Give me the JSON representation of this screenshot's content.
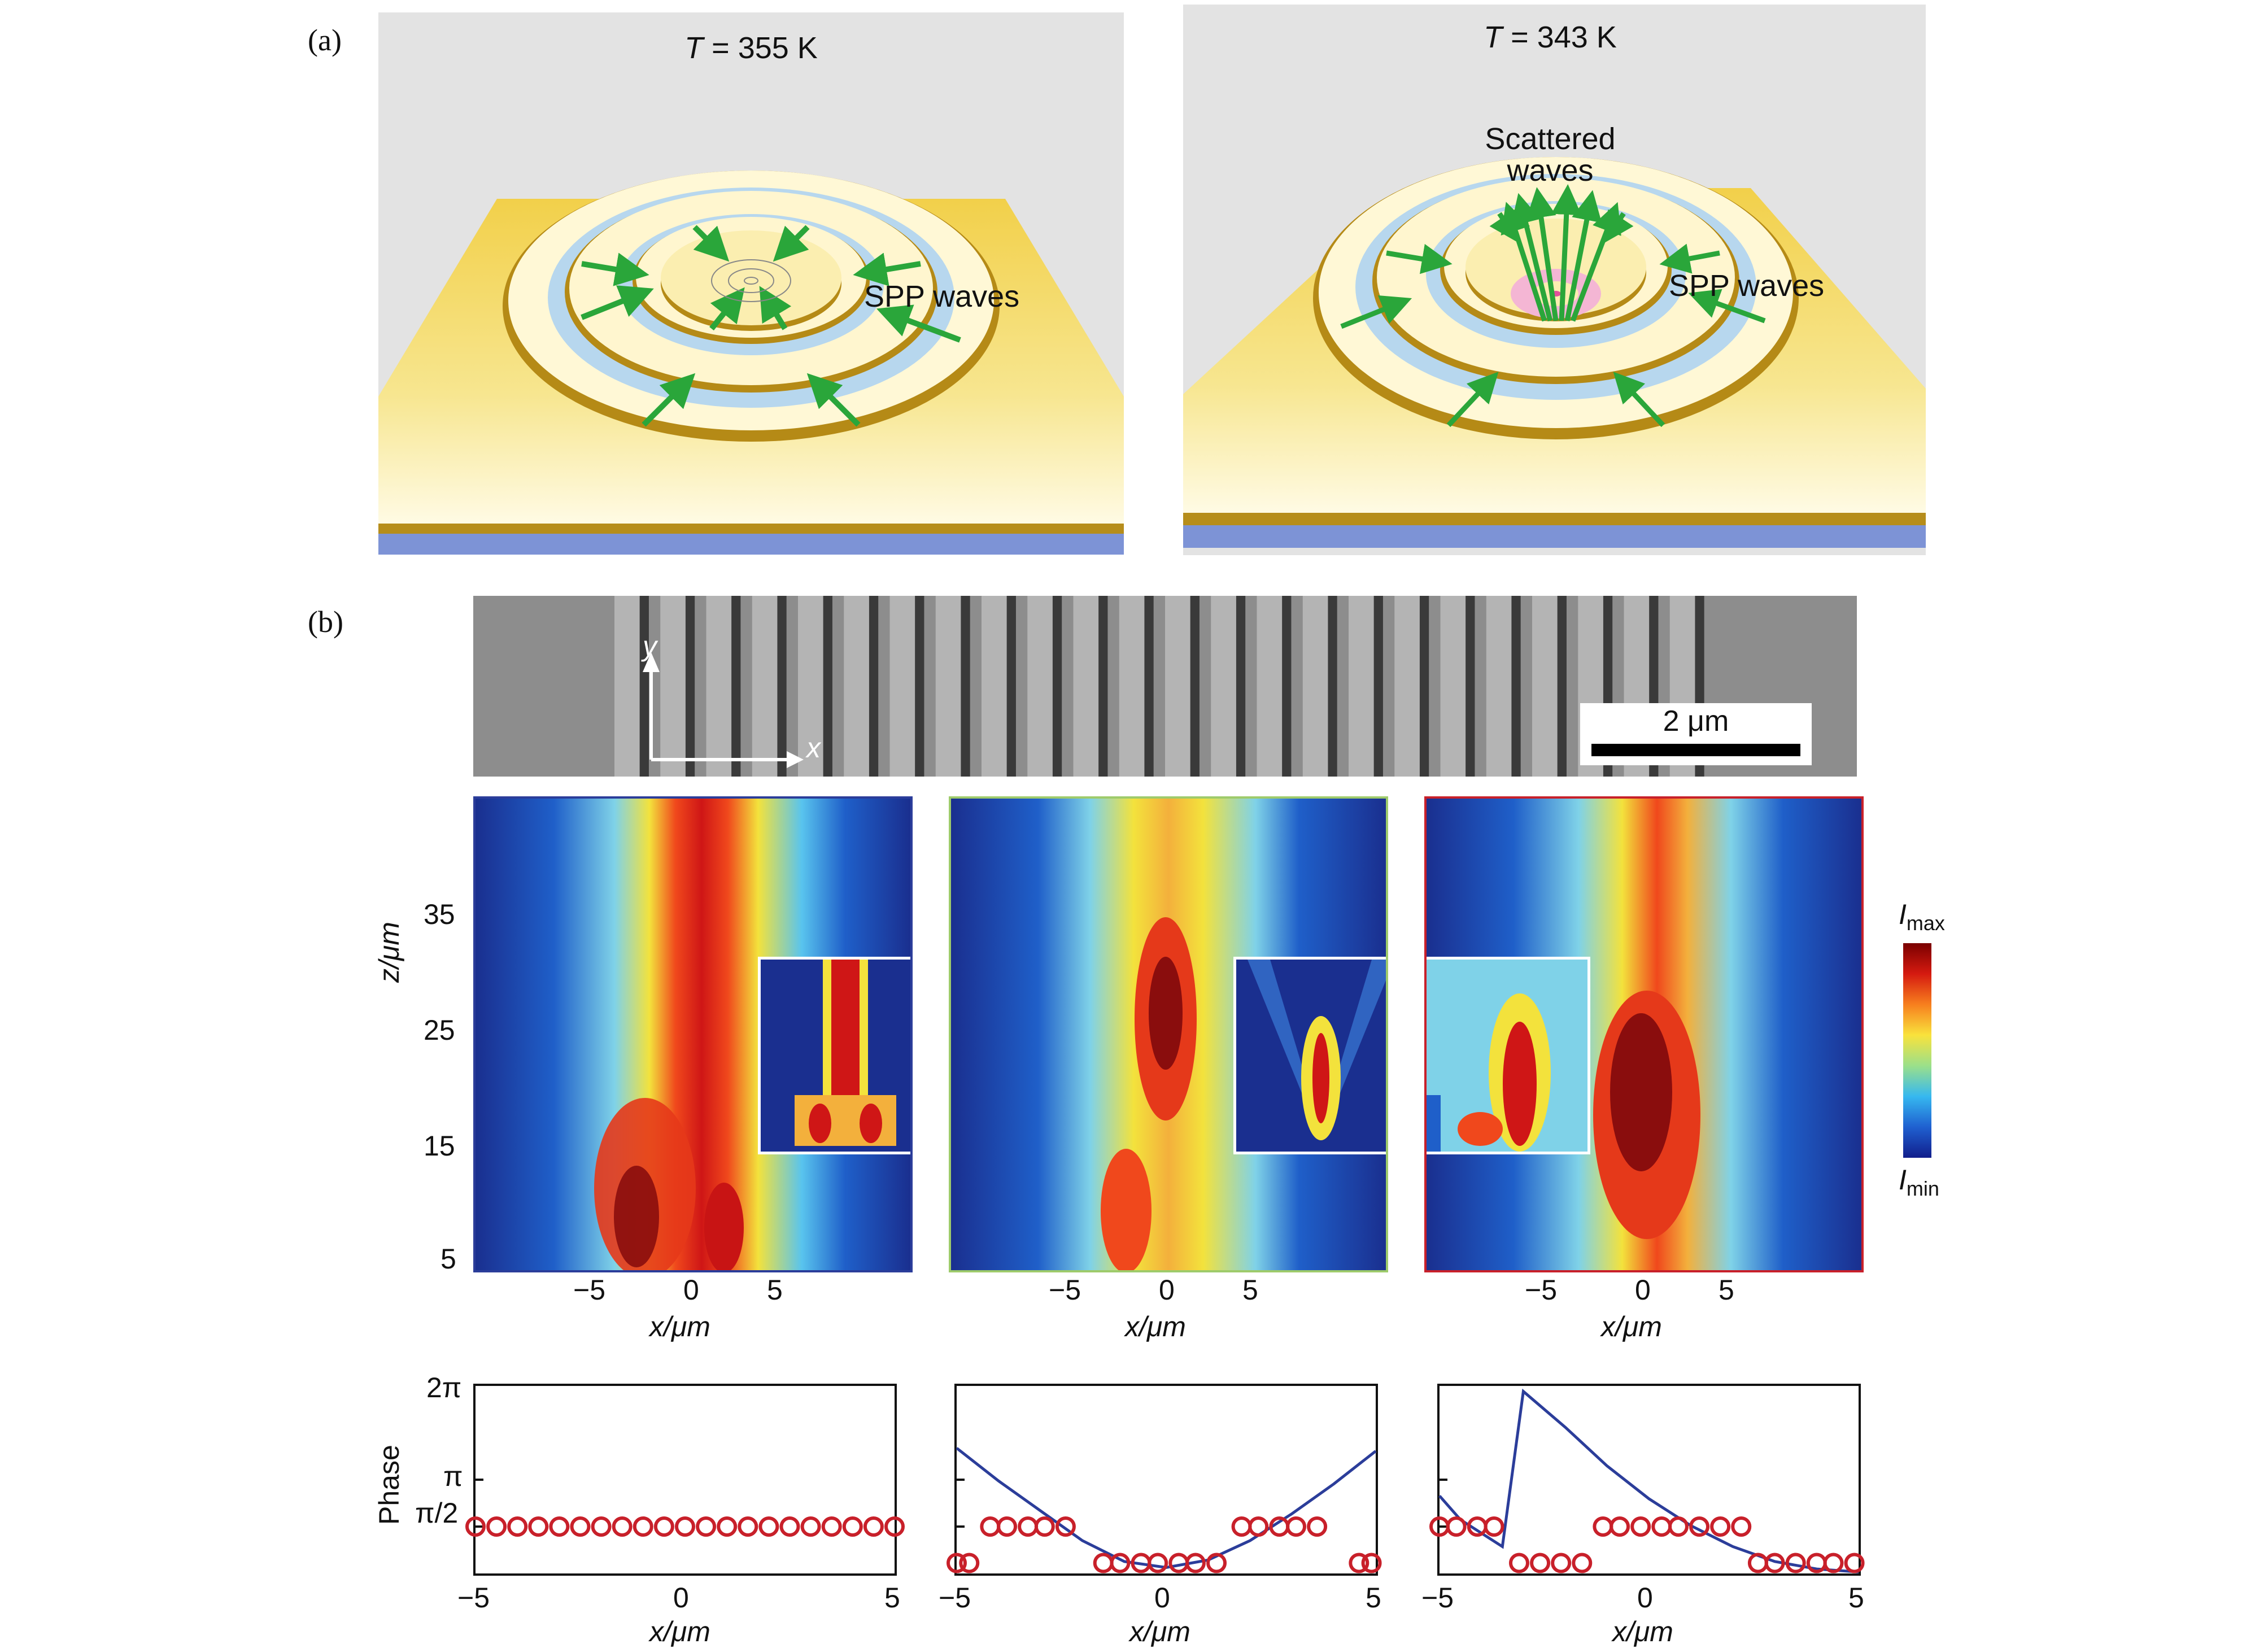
{
  "panels": {
    "a_label": "(a)",
    "b_label": "(b)"
  },
  "scene_left": {
    "temp_prefix": "T",
    "temp_rest": " = 355 K",
    "spp_label": "SPP waves"
  },
  "scene_right": {
    "temp_prefix": "T",
    "temp_rest": " = 343 K",
    "scattered_line1": "Scattered",
    "scattered_line2": "waves",
    "spp_label": "SPP waves"
  },
  "sem": {
    "y_axis": "y",
    "x_axis": "x",
    "scale_bar": "2 μm",
    "stripe_count": 24
  },
  "colors": {
    "gold": "#e8c23a",
    "blue_ring": "#b7d7ee",
    "hm_blue_frame": "#2b3d9a",
    "hm_green_frame": "#9ecb6b",
    "hm_red_frame": "#c8202a",
    "circle_red": "#c8202a",
    "curve_blue": "#2b3d9a"
  },
  "heatmaps": {
    "z_label": "z/μm",
    "z_ticks": [
      "35",
      "25",
      "15",
      "5"
    ],
    "x_ticks": [
      "−5",
      "0",
      "5"
    ],
    "x_label": "x/μm"
  },
  "colorbar": {
    "max_label": "I",
    "max_sub": "max",
    "min_label": "I",
    "min_sub": "min"
  },
  "chart_data": [
    {
      "type": "scatter",
      "title": "",
      "xlabel": "x/μm",
      "ylabel": "Phase",
      "xlim": [
        -5,
        5
      ],
      "ylim": [
        0,
        6.283
      ],
      "yticks": [
        "2π",
        "π",
        "π/2"
      ],
      "xticks": [
        "−5",
        "0",
        "5"
      ],
      "circles_x": [
        -5,
        -4.5,
        -4,
        -3.5,
        -3,
        -2.5,
        -2,
        -1.5,
        -1,
        -0.5,
        0,
        0.5,
        1,
        1.5,
        2,
        2.5,
        3,
        3.5,
        4,
        4.5,
        5
      ],
      "circles_y": [
        1.571,
        1.571,
        1.571,
        1.571,
        1.571,
        1.571,
        1.571,
        1.571,
        1.571,
        1.571,
        1.571,
        1.571,
        1.571,
        1.571,
        1.571,
        1.571,
        1.571,
        1.571,
        1.571,
        1.571,
        1.571
      ],
      "curve": []
    },
    {
      "type": "scatter",
      "title": "",
      "xlabel": "x/μm",
      "ylabel": "",
      "xlim": [
        -5,
        5
      ],
      "ylim": [
        0,
        6.283
      ],
      "xticks": [
        "−5",
        "0",
        "5"
      ],
      "circles_x": [
        -5,
        -4.7,
        -4.2,
        -3.8,
        -3.3,
        -2.9,
        -2.4,
        -1.5,
        -1.1,
        -0.6,
        -0.2,
        0.3,
        0.7,
        1.2,
        1.8,
        2.2,
        2.7,
        3.1,
        3.6,
        4.6,
        4.9
      ],
      "circles_y": [
        0.35,
        0.35,
        1.571,
        1.571,
        1.571,
        1.571,
        1.571,
        0.35,
        0.35,
        0.35,
        0.35,
        0.35,
        0.35,
        0.35,
        1.571,
        1.571,
        1.571,
        1.571,
        1.571,
        0.35,
        0.35
      ],
      "curve": [
        [
          -5,
          4.2
        ],
        [
          -4,
          3.1
        ],
        [
          -3,
          2.1
        ],
        [
          -2,
          1.1
        ],
        [
          -1,
          0.4
        ],
        [
          0,
          0.2
        ],
        [
          1,
          0.45
        ],
        [
          2,
          1.1
        ],
        [
          3,
          2.0
        ],
        [
          4,
          3.0
        ],
        [
          5,
          4.1
        ]
      ]
    },
    {
      "type": "scatter",
      "title": "",
      "xlabel": "x/μm",
      "ylabel": "",
      "xlim": [
        -5,
        5
      ],
      "ylim": [
        0,
        6.283
      ],
      "xticks": [
        "−5",
        "0",
        "5"
      ],
      "circles_x": [
        -5,
        -4.6,
        -4.1,
        -3.7,
        -3.1,
        -2.6,
        -2.1,
        -1.6,
        -1.1,
        -0.7,
        -0.2,
        0.3,
        0.7,
        1.2,
        1.7,
        2.2,
        2.6,
        3.0,
        3.5,
        4.0,
        4.4,
        4.9
      ],
      "circles_y": [
        1.571,
        1.571,
        1.571,
        1.571,
        0.35,
        0.35,
        0.35,
        0.35,
        1.571,
        1.571,
        1.571,
        1.571,
        1.571,
        1.571,
        1.571,
        1.571,
        0.35,
        0.35,
        0.35,
        0.35,
        0.35,
        0.35
      ],
      "curve": [
        [
          -5,
          2.6
        ],
        [
          -4.5,
          1.8
        ],
        [
          -3.5,
          0.9
        ],
        [
          -3,
          6.1
        ],
        [
          -2,
          4.9
        ],
        [
          -1,
          3.6
        ],
        [
          0,
          2.5
        ],
        [
          1,
          1.6
        ],
        [
          2,
          0.9
        ],
        [
          3,
          0.4
        ],
        [
          4,
          0.15
        ],
        [
          5,
          0.05
        ]
      ]
    }
  ]
}
